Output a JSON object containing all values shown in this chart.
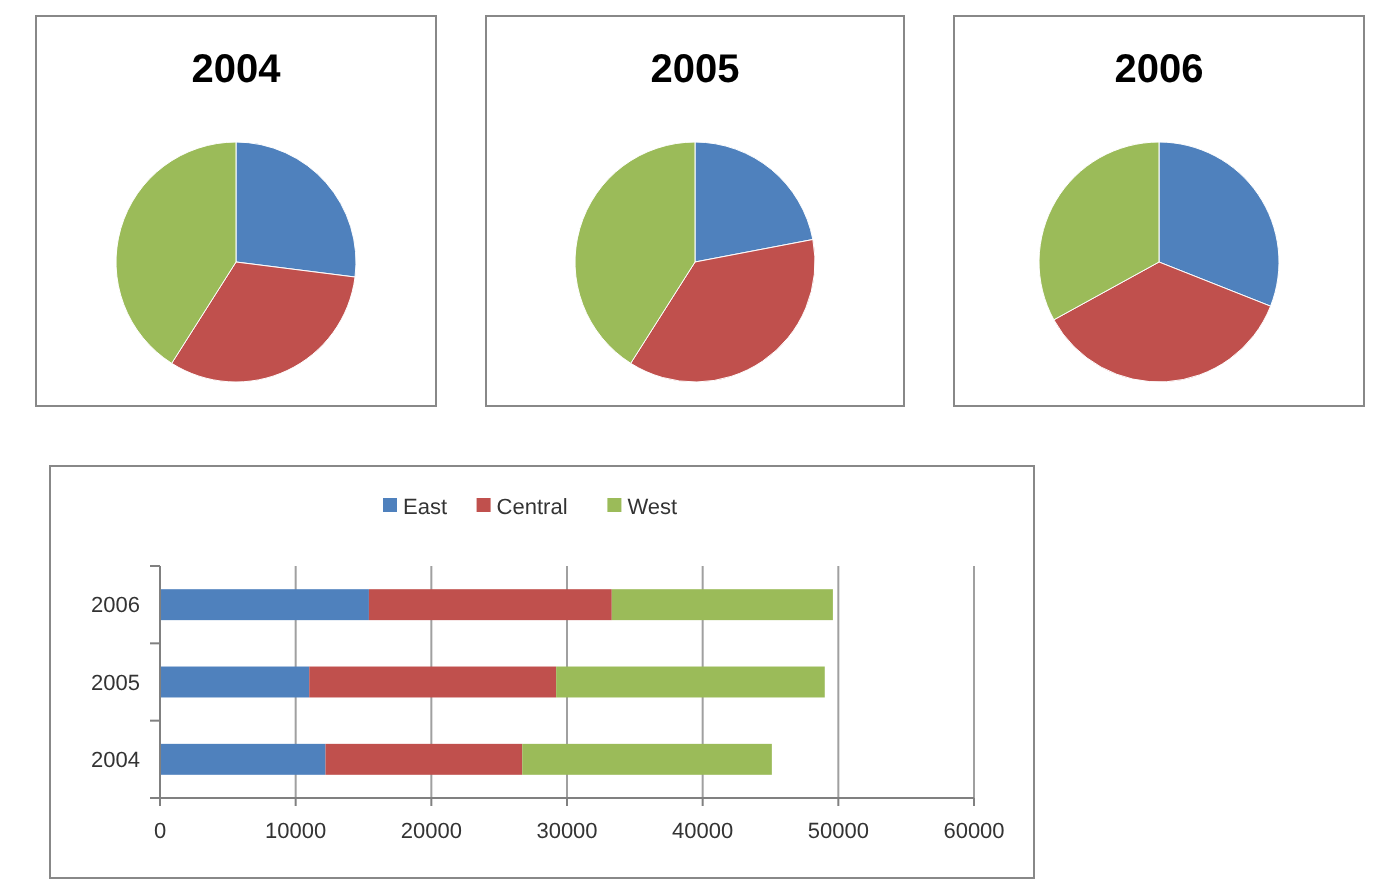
{
  "chart_data": [
    {
      "type": "pie",
      "title": "2004",
      "categories": [
        null,
        null,
        null
      ],
      "values": [
        27,
        32,
        41
      ],
      "colors": [
        "#4f81bd",
        "#c0504d",
        "#9bbb59"
      ],
      "legend": false
    },
    {
      "type": "pie",
      "title": "2005",
      "categories": [
        null,
        null,
        null
      ],
      "values": [
        22,
        37,
        41
      ],
      "colors": [
        "#4f81bd",
        "#c0504d",
        "#9bbb59"
      ],
      "legend": false
    },
    {
      "type": "pie",
      "title": "2006",
      "categories": [
        null,
        null,
        null
      ],
      "values": [
        31,
        36,
        33
      ],
      "colors": [
        "#4f81bd",
        "#c0504d",
        "#9bbb59"
      ],
      "legend": false
    },
    {
      "type": "bar",
      "orientation": "horizontal",
      "stacked": true,
      "categories": [
        "2006",
        "2005",
        "2004"
      ],
      "series": [
        {
          "name": "East",
          "color": "#4f81bd",
          "values": [
            15400,
            11000,
            12200
          ]
        },
        {
          "name": "Central",
          "color": "#c0504d",
          "values": [
            17900,
            18200,
            14500
          ]
        },
        {
          "name": "West",
          "color": "#9bbb59",
          "values": [
            16300,
            19800,
            18400
          ]
        }
      ],
      "xlim": [
        0,
        60000
      ],
      "xticks": [
        0,
        10000,
        20000,
        30000,
        40000,
        50000,
        60000
      ],
      "grid": "x",
      "legend": "top"
    }
  ]
}
